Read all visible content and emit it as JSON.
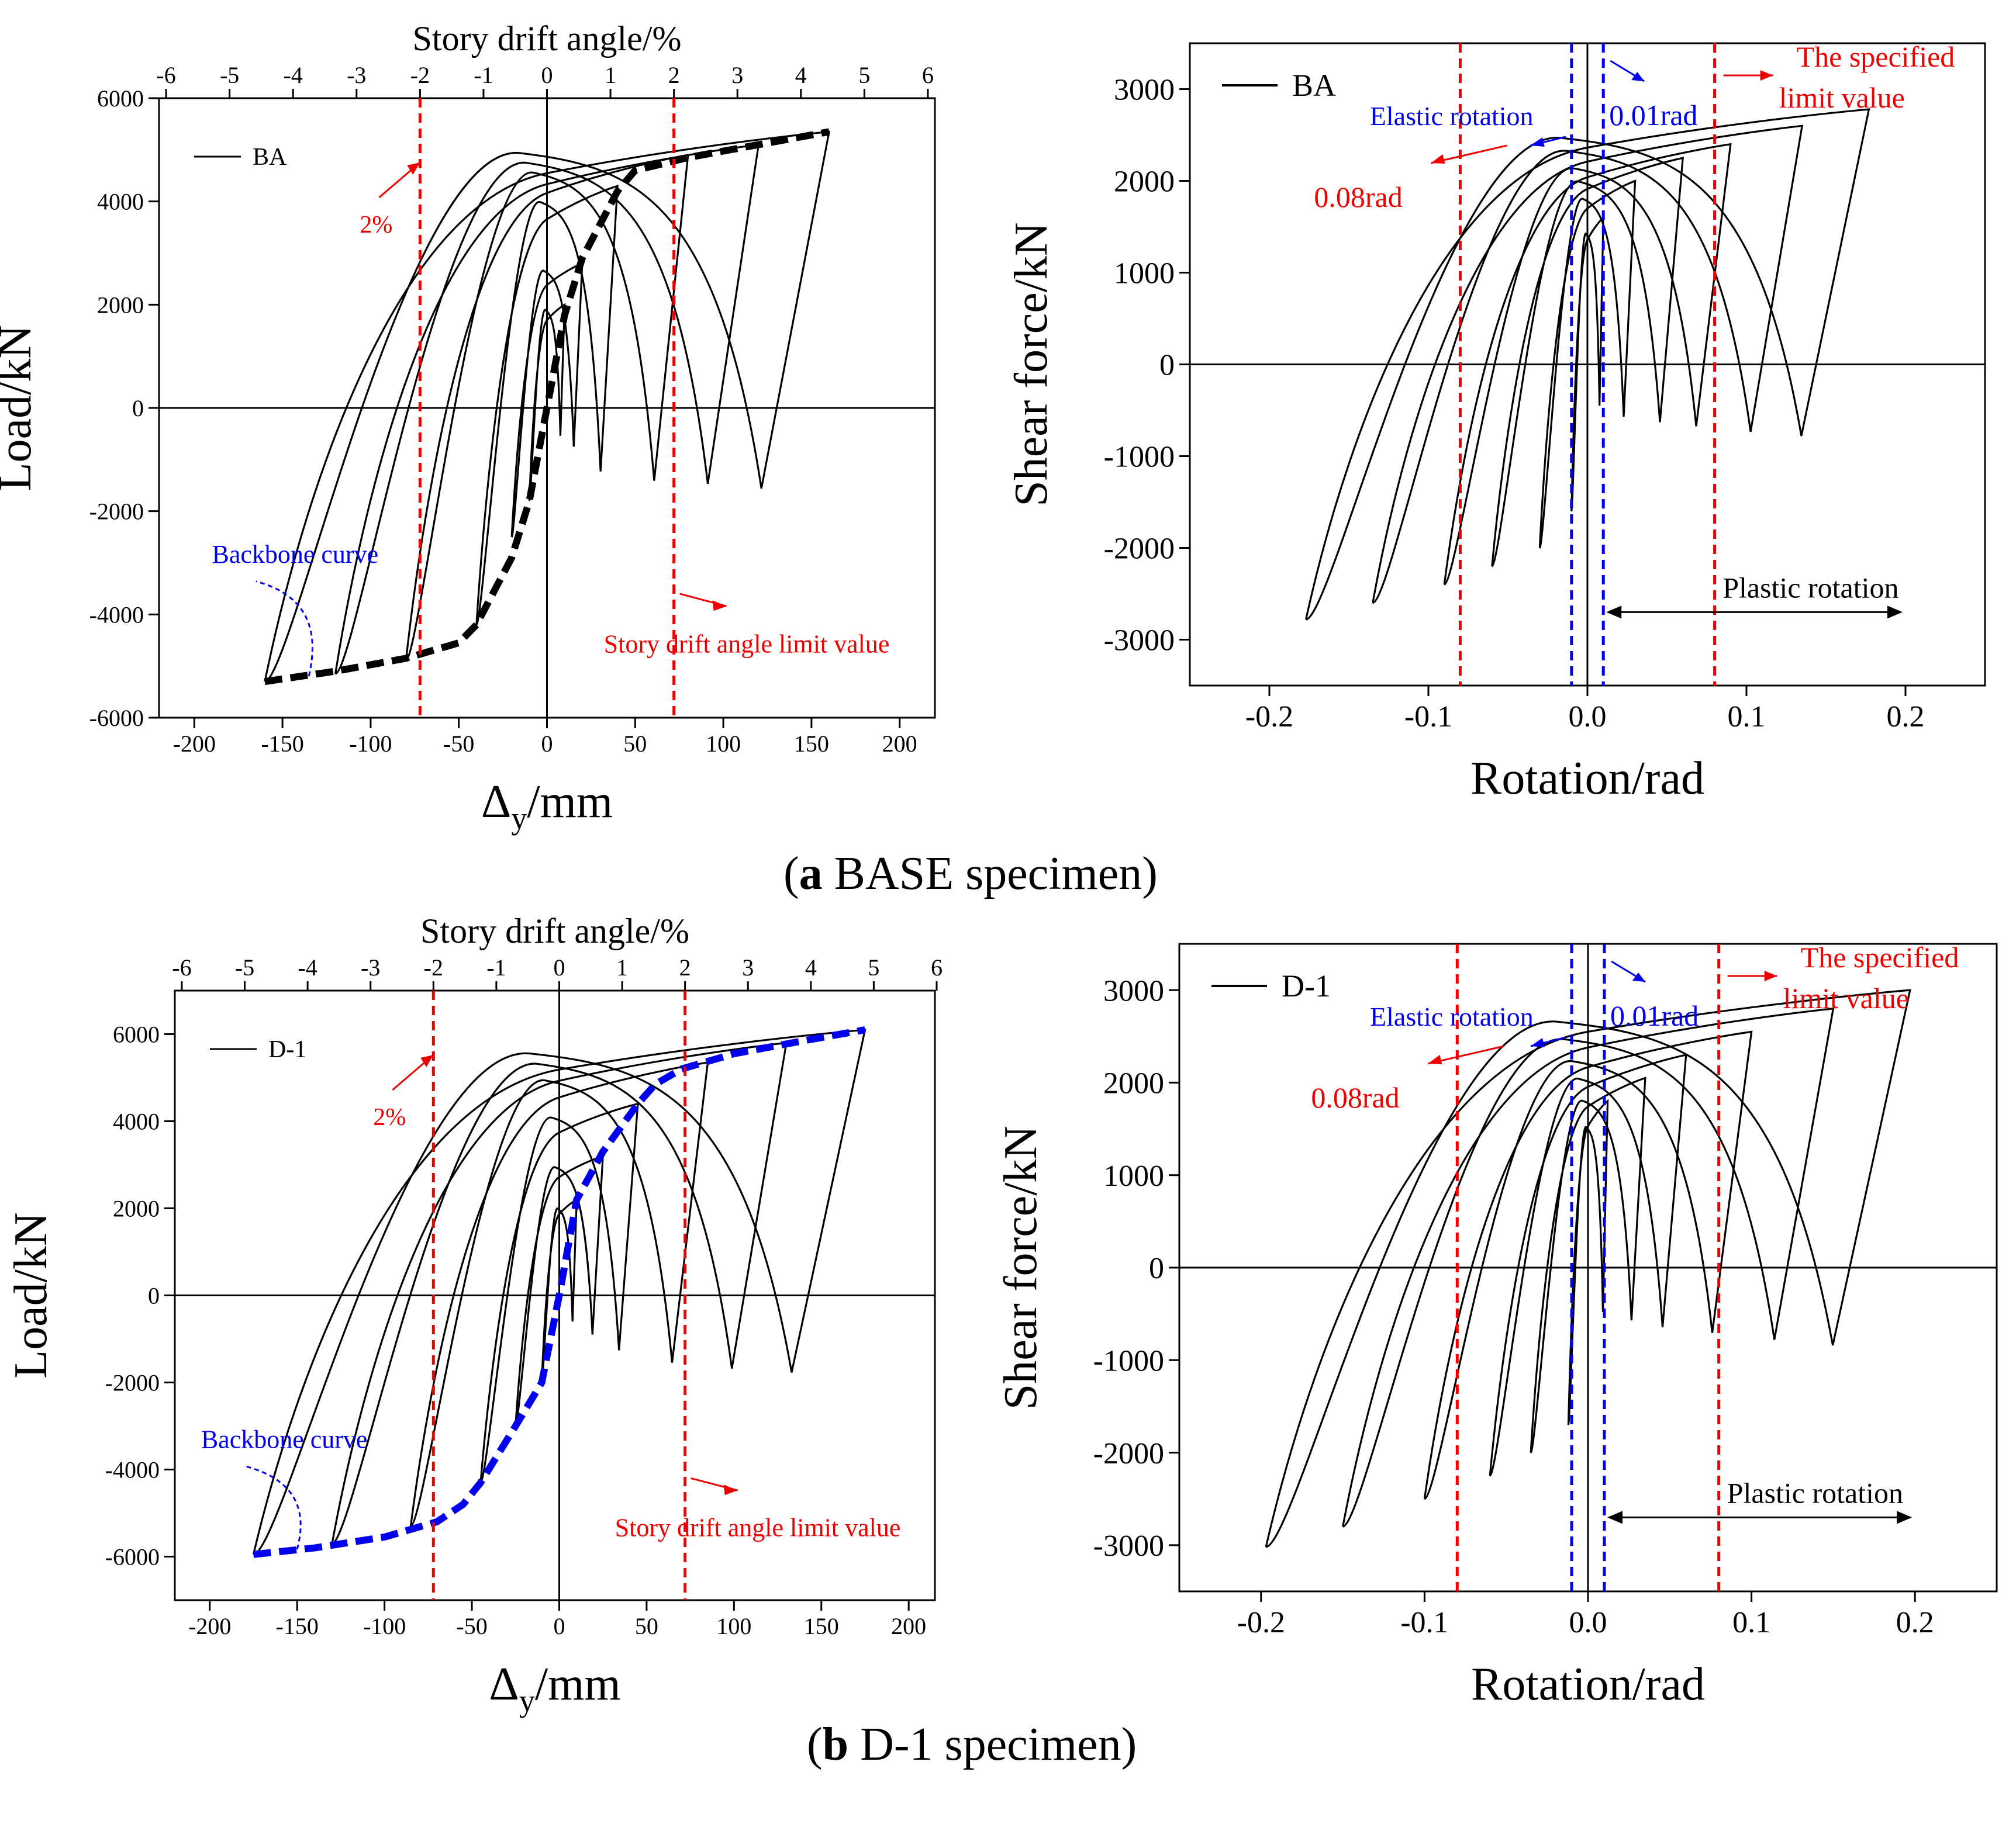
{
  "chart_data": [
    {
      "id": "a-left",
      "type": "line",
      "xlabel_main": "Δ",
      "xlabel_sub": "y",
      "xlabel_unit": "/mm",
      "ylabel": "Load/kN",
      "top_axis_label": "Story drift angle/%",
      "xlim": [
        -220,
        220
      ],
      "ylim": [
        -6000,
        6000
      ],
      "x_ticks": [
        "-200",
        "-150",
        "-100",
        "-50",
        "0",
        "50",
        "100",
        "150",
        "200"
      ],
      "y_ticks": [
        "-6000",
        "-4000",
        "-2000",
        "0",
        "2000",
        "4000",
        "6000"
      ],
      "top_ticks": [
        "-6",
        "-5",
        "-4",
        "-3",
        "-2",
        "-1",
        "0",
        "1",
        "2",
        "3",
        "4",
        "5",
        "6"
      ],
      "legend": "BA",
      "backbone_color": "#000000",
      "limit_lines_x": [
        -72,
        72
      ],
      "annotations": {
        "percent": "2%",
        "backbone": "Backbone curve",
        "limit": "Story drift angle limit value"
      },
      "series": [
        {
          "name": "loop",
          "x": [
            -10,
            10,
            10,
            -10
          ],
          "y": [
            -1800,
            2000,
            1800,
            -2000
          ]
        },
        {
          "name": "loop",
          "x": [
            -20,
            20,
            20,
            -20
          ],
          "y": [
            -2500,
            2800,
            2500,
            -2800
          ]
        },
        {
          "name": "loop",
          "x": [
            -40,
            40,
            40,
            -40
          ],
          "y": [
            -4200,
            4300,
            4100,
            -4200
          ]
        },
        {
          "name": "loop",
          "x": [
            -80,
            80,
            80,
            -80
          ],
          "y": [
            -4900,
            4900,
            4700,
            -4800
          ]
        },
        {
          "name": "loop",
          "x": [
            -120,
            120,
            120,
            -120
          ],
          "y": [
            -5150,
            5100,
            4900,
            -5000
          ]
        },
        {
          "name": "loop",
          "x": [
            -160,
            160,
            160,
            -160
          ],
          "y": [
            -5300,
            5350,
            5200,
            -5200
          ]
        }
      ],
      "backbone": {
        "x": [
          -160,
          -120,
          -80,
          -50,
          -40,
          -20,
          -10,
          0,
          10,
          20,
          40,
          50,
          80,
          120,
          160
        ],
        "y": [
          -5300,
          -5100,
          -4850,
          -4550,
          -4200,
          -2900,
          -1800,
          0,
          1800,
          2900,
          4200,
          4600,
          4850,
          5100,
          5350
        ]
      }
    },
    {
      "id": "a-right",
      "type": "line",
      "xlabel": "Rotation/rad",
      "ylabel": "Shear force/kN",
      "xlim": [
        -0.25,
        0.25
      ],
      "ylim": [
        -3500,
        3500
      ],
      "x_ticks": [
        "-0.2",
        "-0.1",
        "0.0",
        "0.1",
        "0.2"
      ],
      "y_ticks": [
        "-3000",
        "-2000",
        "-1000",
        "0",
        "1000",
        "2000",
        "3000"
      ],
      "legend": "BA",
      "red_lines_x": [
        -0.08,
        0.08
      ],
      "blue_lines_x": [
        -0.01,
        0.01
      ],
      "annotations": {
        "specified_1": "The specified",
        "specified_2": "limit value",
        "elastic": "Elastic rotation",
        "elastic_rad": "0.01rad",
        "plastic_rad": "0.08rad",
        "plastic": "Plastic rotation"
      },
      "series": [
        {
          "name": "loop",
          "x": [
            -0.01,
            0.01,
            0.01,
            -0.01
          ],
          "y": [
            -1600,
            1600,
            1500,
            -1500
          ]
        },
        {
          "name": "loop",
          "x": [
            -0.03,
            0.03,
            0.03,
            -0.03
          ],
          "y": [
            -2000,
            2000,
            1900,
            -1900
          ]
        },
        {
          "name": "loop",
          "x": [
            -0.06,
            0.06,
            0.06,
            -0.06
          ],
          "y": [
            -2200,
            2250,
            2100,
            -2100
          ]
        },
        {
          "name": "loop",
          "x": [
            -0.09,
            0.09,
            0.09,
            -0.09
          ],
          "y": [
            -2400,
            2400,
            2250,
            -2250
          ]
        },
        {
          "name": "loop",
          "x": [
            -0.135,
            0.135,
            0.135,
            -0.135
          ],
          "y": [
            -2600,
            2600,
            2450,
            -2450
          ]
        },
        {
          "name": "loop",
          "x": [
            -0.177,
            0.177,
            0.177,
            -0.177
          ],
          "y": [
            -2780,
            2780,
            2600,
            -2600
          ]
        }
      ]
    },
    {
      "id": "b-left",
      "type": "line",
      "xlabel_main": "Δ",
      "xlabel_sub": "y",
      "xlabel_unit": "/mm",
      "ylabel": "Load/kN",
      "top_axis_label": "Story drift angle/%",
      "xlim": [
        -220,
        215
      ],
      "ylim": [
        -7000,
        7000
      ],
      "x_ticks": [
        "-200",
        "-150",
        "-100",
        "-50",
        "0",
        "50",
        "100",
        "150",
        "200"
      ],
      "y_ticks": [
        "-6000",
        "-4000",
        "-2000",
        "0",
        "2000",
        "4000",
        "6000"
      ],
      "top_ticks": [
        "-6",
        "-5",
        "-4",
        "-3",
        "-2",
        "-1",
        "0",
        "1",
        "2",
        "3",
        "4",
        "5",
        "6"
      ],
      "legend": "D-1",
      "backbone_color": "#0000ee",
      "limit_lines_x": [
        -72,
        72
      ],
      "annotations": {
        "percent": "2%",
        "backbone": "Backbone curve",
        "limit": "Story drift angle limit value"
      },
      "series": [
        {
          "name": "loop",
          "x": [
            -10,
            10,
            10,
            -10
          ],
          "y": [
            -2000,
            2200,
            2000,
            -2100
          ]
        },
        {
          "name": "loop",
          "x": [
            -25,
            25,
            25,
            -25
          ],
          "y": [
            -3000,
            3200,
            3000,
            -3100
          ]
        },
        {
          "name": "loop",
          "x": [
            -45,
            45,
            45,
            -45
          ],
          "y": [
            -4300,
            4400,
            4200,
            -4300
          ]
        },
        {
          "name": "loop",
          "x": [
            -85,
            85,
            85,
            -85
          ],
          "y": [
            -5300,
            5350,
            5150,
            -5200
          ]
        },
        {
          "name": "loop",
          "x": [
            -130,
            130,
            130,
            -130
          ],
          "y": [
            -5700,
            5800,
            5600,
            -5600
          ]
        },
        {
          "name": "loop",
          "x": [
            -175,
            175,
            175,
            -175
          ],
          "y": [
            -5950,
            6100,
            5900,
            -5850
          ]
        }
      ],
      "backbone": {
        "x": [
          -175,
          -140,
          -100,
          -70,
          -55,
          -45,
          -25,
          -10,
          0,
          10,
          25,
          45,
          55,
          70,
          100,
          140,
          175
        ],
        "y": [
          -5950,
          -5800,
          -5550,
          -5200,
          -4800,
          -4300,
          -3000,
          -2000,
          0,
          2200,
          3300,
          4400,
          4850,
          5200,
          5550,
          5850,
          6100
        ]
      }
    },
    {
      "id": "b-right",
      "type": "line",
      "xlabel": "Rotation/rad",
      "ylabel": "Shear force/kN",
      "xlim": [
        -0.25,
        0.25
      ],
      "ylim": [
        -3500,
        3500
      ],
      "x_ticks": [
        "-0.2",
        "-0.1",
        "0.0",
        "0.1",
        "0.2"
      ],
      "y_ticks": [
        "-3000",
        "-2000",
        "-1000",
        "0",
        "1000",
        "2000",
        "3000"
      ],
      "legend": "D-1",
      "red_lines_x": [
        -0.08,
        0.08
      ],
      "blue_lines_x": [
        -0.01,
        0.01
      ],
      "annotations": {
        "specified_1": "The specified",
        "specified_2": "limit value",
        "elastic": "Elastic rotation",
        "elastic_rad": "0.01rad",
        "plastic_rad": "0.08rad",
        "plastic": "Plastic rotation"
      },
      "series": [
        {
          "name": "loop",
          "x": [
            -0.012,
            0.012,
            0.012,
            -0.012
          ],
          "y": [
            -1700,
            1800,
            1600,
            -1600
          ]
        },
        {
          "name": "loop",
          "x": [
            -0.035,
            0.035,
            0.035,
            -0.035
          ],
          "y": [
            -2000,
            2050,
            1900,
            -1900
          ]
        },
        {
          "name": "loop",
          "x": [
            -0.06,
            0.06,
            0.06,
            -0.06
          ],
          "y": [
            -2250,
            2300,
            2150,
            -2150
          ]
        },
        {
          "name": "loop",
          "x": [
            -0.1,
            0.1,
            0.1,
            -0.1
          ],
          "y": [
            -2500,
            2550,
            2350,
            -2350
          ]
        },
        {
          "name": "loop",
          "x": [
            -0.15,
            0.15,
            0.15,
            -0.15
          ],
          "y": [
            -2800,
            2800,
            2600,
            -2600
          ]
        },
        {
          "name": "loop",
          "x": [
            -0.197,
            0.197,
            0.197,
            -0.197
          ],
          "y": [
            -3020,
            3000,
            2800,
            -2800
          ]
        }
      ]
    }
  ],
  "captions": {
    "a_letter": "a",
    "a_text": " BASE specimen",
    "b_letter": "b",
    "b_text": " D-1 specimen"
  }
}
